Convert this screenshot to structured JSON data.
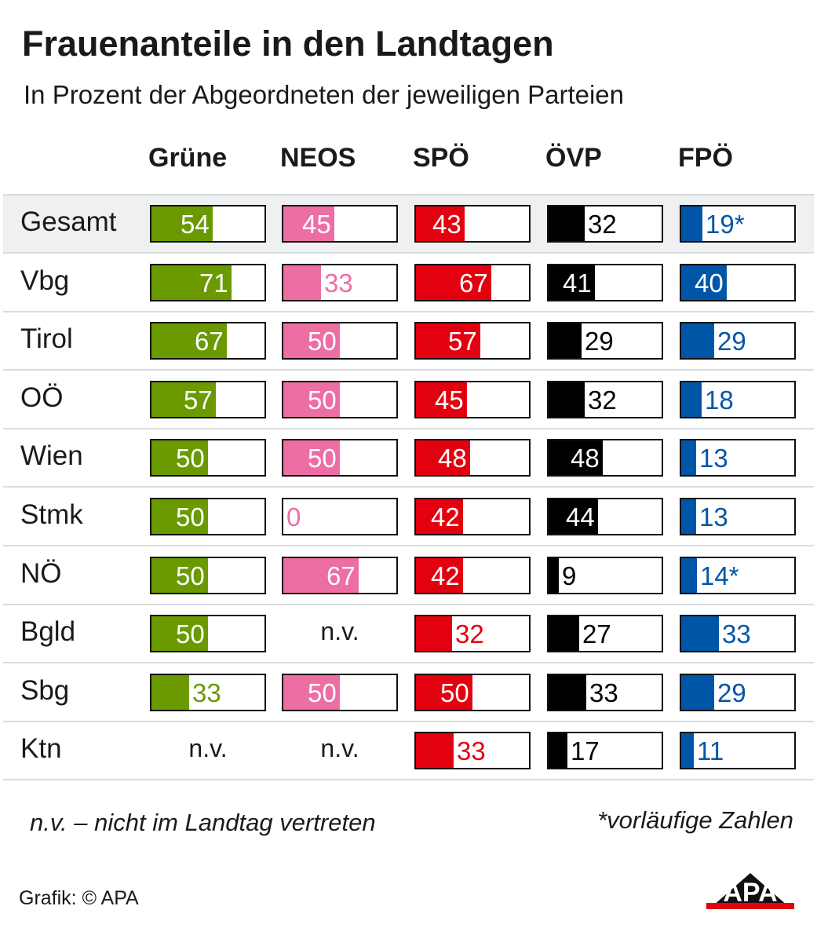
{
  "header": {
    "title": "Frauenanteile in den Landtagen",
    "subtitle": "In Prozent der Abgeordneten der jeweiligen Parteien"
  },
  "chart_data": {
    "type": "table",
    "title": "Frauenanteile in den Landtagen",
    "subtitle": "In Prozent der Abgeordneten der jeweiligen Parteien",
    "columns": [
      {
        "name": "Grüne",
        "color": "#6a9a00",
        "label_color": "#6a9a00"
      },
      {
        "name": "NEOS",
        "color": "#ec6ea3",
        "label_color": "#ec6ea3"
      },
      {
        "name": "SPÖ",
        "color": "#e3000f",
        "label_color": "#e3000f"
      },
      {
        "name": "ÖVP",
        "color": "#000000",
        "label_color": "#000000"
      },
      {
        "name": "FPÖ",
        "color": "#0056a6",
        "label_color": "#0056a6"
      }
    ],
    "rows": [
      {
        "label": "Gesamt",
        "highlight": true,
        "values": [
          {
            "v": 54,
            "t": "54"
          },
          {
            "v": 45,
            "t": "45"
          },
          {
            "v": 43,
            "t": "43"
          },
          {
            "v": 32,
            "t": "32"
          },
          {
            "v": 19,
            "t": "19*"
          }
        ]
      },
      {
        "label": "Vbg",
        "values": [
          {
            "v": 71,
            "t": "71"
          },
          {
            "v": 33,
            "t": "33"
          },
          {
            "v": 67,
            "t": "67"
          },
          {
            "v": 41,
            "t": "41"
          },
          {
            "v": 40,
            "t": "40"
          }
        ]
      },
      {
        "label": "Tirol",
        "values": [
          {
            "v": 67,
            "t": "67"
          },
          {
            "v": 50,
            "t": "50"
          },
          {
            "v": 57,
            "t": "57"
          },
          {
            "v": 29,
            "t": "29"
          },
          {
            "v": 29,
            "t": "29"
          }
        ]
      },
      {
        "label": "OÖ",
        "values": [
          {
            "v": 57,
            "t": "57"
          },
          {
            "v": 50,
            "t": "50"
          },
          {
            "v": 45,
            "t": "45"
          },
          {
            "v": 32,
            "t": "32"
          },
          {
            "v": 18,
            "t": "18"
          }
        ]
      },
      {
        "label": "Wien",
        "values": [
          {
            "v": 50,
            "t": "50"
          },
          {
            "v": 50,
            "t": "50"
          },
          {
            "v": 48,
            "t": "48"
          },
          {
            "v": 48,
            "t": "48"
          },
          {
            "v": 13,
            "t": "13"
          }
        ]
      },
      {
        "label": "Stmk",
        "values": [
          {
            "v": 50,
            "t": "50"
          },
          {
            "v": 0,
            "t": "0"
          },
          {
            "v": 42,
            "t": "42"
          },
          {
            "v": 44,
            "t": "44"
          },
          {
            "v": 13,
            "t": "13"
          }
        ]
      },
      {
        "label": "NÖ",
        "values": [
          {
            "v": 50,
            "t": "50"
          },
          {
            "v": 67,
            "t": "67"
          },
          {
            "v": 42,
            "t": "42"
          },
          {
            "v": 9,
            "t": "9"
          },
          {
            "v": 14,
            "t": "14*"
          }
        ]
      },
      {
        "label": "Bgld",
        "values": [
          {
            "v": 50,
            "t": "50"
          },
          {
            "v": null,
            "t": "n.v."
          },
          {
            "v": 32,
            "t": "32"
          },
          {
            "v": 27,
            "t": "27"
          },
          {
            "v": 33,
            "t": "33"
          }
        ]
      },
      {
        "label": "Sbg",
        "values": [
          {
            "v": 33,
            "t": "33"
          },
          {
            "v": 50,
            "t": "50"
          },
          {
            "v": 50,
            "t": "50"
          },
          {
            "v": 33,
            "t": "33"
          },
          {
            "v": 29,
            "t": "29"
          }
        ]
      },
      {
        "label": "Ktn",
        "values": [
          {
            "v": null,
            "t": "n.v."
          },
          {
            "v": null,
            "t": "n.v."
          },
          {
            "v": 33,
            "t": "33"
          },
          {
            "v": 17,
            "t": "17"
          },
          {
            "v": 11,
            "t": "11"
          }
        ]
      }
    ],
    "value_range": [
      0,
      100
    ]
  },
  "footer": {
    "note_left": "n.v. – nicht im Landtag vertreten",
    "note_right": "*vorläufige Zahlen",
    "credit": "Grafik: © APA",
    "logo_text": "APA"
  }
}
